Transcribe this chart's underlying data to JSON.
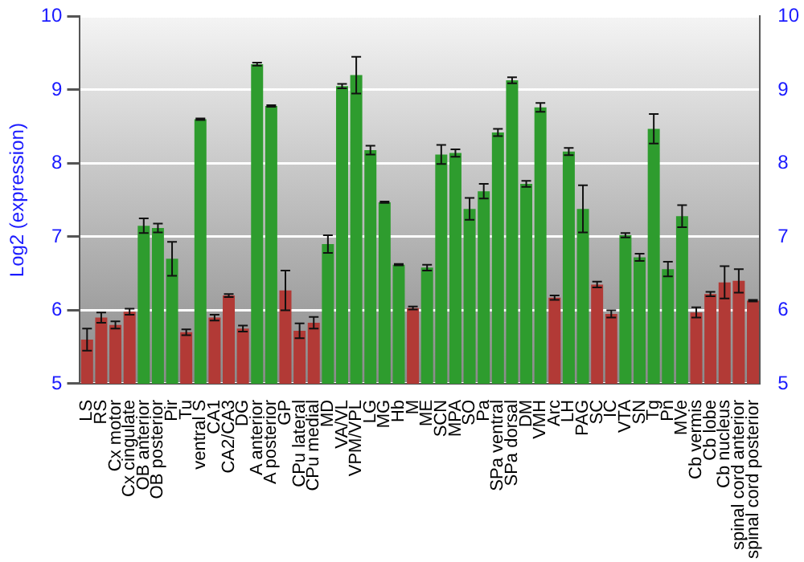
{
  "chart_data": {
    "type": "bar",
    "ylabel": "Log2 (expression)",
    "categories": [
      "LS",
      "RS",
      "Cx motor",
      "Cx cingulate",
      "OB anterior",
      "OB posterior",
      "Pir",
      "Tu",
      "ventral S",
      "CA1",
      "CA2/CA3",
      "DG",
      "A anterior",
      "A posterior",
      "GP",
      "CPu lateral",
      "CPu medial",
      "MD",
      "VA/VL",
      "VPM/VPL",
      "LG",
      "MG",
      "Hb",
      "M",
      "ME",
      "SCN",
      "MPA",
      "SO",
      "Pa",
      "SPa ventral",
      "SPa dorsal",
      "DM",
      "VMH",
      "Arc",
      "LH",
      "PAG",
      "SC",
      "IC",
      "VTA",
      "SN",
      "Tg",
      "Pn",
      "MVe",
      "Cb vermis",
      "Cb lobe",
      "Cb nucleus",
      "spinal cord anterior",
      "spinal cord posterior"
    ],
    "values": [
      5.6,
      5.9,
      5.8,
      5.98,
      7.15,
      7.12,
      6.7,
      5.7,
      8.6,
      5.9,
      6.2,
      5.75,
      9.35,
      8.78,
      6.27,
      5.72,
      5.83,
      6.9,
      9.05,
      9.2,
      8.18,
      7.47,
      6.62,
      6.03,
      6.58,
      8.12,
      8.14,
      7.38,
      7.62,
      8.42,
      9.13,
      7.72,
      8.76,
      6.17,
      8.16,
      7.38,
      6.35,
      5.95,
      7.02,
      6.72,
      8.47,
      6.56,
      7.28,
      5.97,
      6.22,
      6.38,
      6.4,
      6.13
    ],
    "errors": [
      0.15,
      0.07,
      0.05,
      0.04,
      0.1,
      0.06,
      0.23,
      0.04,
      0.01,
      0.04,
      0.02,
      0.04,
      0.02,
      0.01,
      0.27,
      0.1,
      0.08,
      0.12,
      0.03,
      0.25,
      0.06,
      0.01,
      0.01,
      0.02,
      0.04,
      0.13,
      0.05,
      0.15,
      0.1,
      0.05,
      0.04,
      0.04,
      0.06,
      0.03,
      0.05,
      0.32,
      0.04,
      0.05,
      0.03,
      0.05,
      0.2,
      0.1,
      0.15,
      0.07,
      0.03,
      0.22,
      0.16,
      0.01
    ],
    "colors": [
      "#b23a36",
      "#b23a36",
      "#b23a36",
      "#b23a36",
      "#2e9c2e",
      "#2e9c2e",
      "#2e9c2e",
      "#b23a36",
      "#2e9c2e",
      "#b23a36",
      "#b23a36",
      "#b23a36",
      "#2e9c2e",
      "#2e9c2e",
      "#b23a36",
      "#b23a36",
      "#b23a36",
      "#2e9c2e",
      "#2e9c2e",
      "#2e9c2e",
      "#2e9c2e",
      "#2e9c2e",
      "#2e9c2e",
      "#b23a36",
      "#2e9c2e",
      "#2e9c2e",
      "#2e9c2e",
      "#2e9c2e",
      "#2e9c2e",
      "#2e9c2e",
      "#2e9c2e",
      "#2e9c2e",
      "#2e9c2e",
      "#b23a36",
      "#2e9c2e",
      "#2e9c2e",
      "#b23a36",
      "#b23a36",
      "#2e9c2e",
      "#2e9c2e",
      "#2e9c2e",
      "#2e9c2e",
      "#2e9c2e",
      "#b23a36",
      "#b23a36",
      "#b23a36",
      "#b23a36",
      "#b23a36"
    ],
    "ylim": [
      5,
      10
    ],
    "yticks": [
      5,
      6,
      7,
      8,
      9,
      10
    ],
    "y2lim": [
      5,
      10
    ],
    "y2ticks": [
      5,
      6,
      7,
      8,
      9,
      10
    ],
    "grid": "y",
    "legend": false
  }
}
